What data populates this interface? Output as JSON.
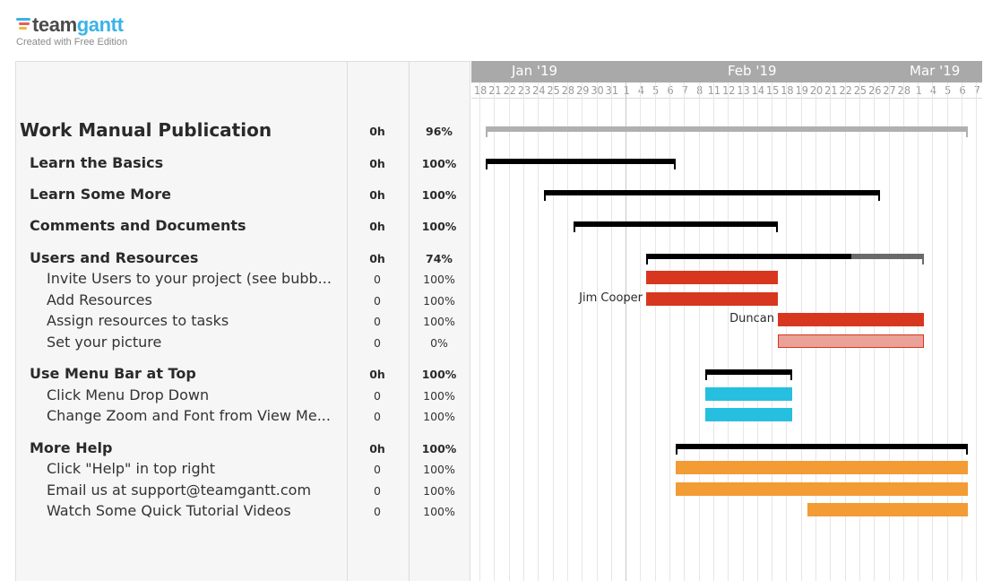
{
  "brand": {
    "word_a": "team",
    "word_b": "gantt",
    "subtitle": "Created with Free Edition",
    "logo_colors": [
      "#3ab3e6",
      "#e85d5d",
      "#f0b840",
      "#9b6fc9"
    ]
  },
  "months": [
    {
      "label": "Jan '19"
    },
    {
      "label": "Feb '19"
    },
    {
      "label": "Mar '19"
    }
  ],
  "days": [
    "18",
    "21",
    "22",
    "23",
    "24",
    "25",
    "28",
    "29",
    "30",
    "31",
    "1",
    "4",
    "5",
    "6",
    "7",
    "8",
    "11",
    "12",
    "13",
    "14",
    "15",
    "18",
    "19",
    "20",
    "21",
    "22",
    "25",
    "26",
    "27",
    "28",
    "1",
    "4",
    "5",
    "6",
    "7"
  ],
  "rows": [
    {
      "name": "Work Manual Publication",
      "hours": "0h",
      "percent": "96%",
      "level": 0
    },
    {
      "name": "Learn the Basics",
      "hours": "0h",
      "percent": "100%",
      "level": 1
    },
    {
      "name": "Learn Some More",
      "hours": "0h",
      "percent": "100%",
      "level": 1
    },
    {
      "name": "Comments and Documents",
      "hours": "0h",
      "percent": "100%",
      "level": 1
    },
    {
      "name": "Users and Resources",
      "hours": "0h",
      "percent": "74%",
      "level": 1
    },
    {
      "name": "Invite Users to your project (see bubb...",
      "hours": "0",
      "percent": "100%",
      "level": 2
    },
    {
      "name": "Add Resources",
      "hours": "0",
      "percent": "100%",
      "level": 2,
      "assignee": "Jim Cooper"
    },
    {
      "name": "Assign resources to tasks",
      "hours": "0",
      "percent": "100%",
      "level": 2,
      "assignee": "Duncan"
    },
    {
      "name": "Set your picture",
      "hours": "0",
      "percent": "0%",
      "level": 2
    },
    {
      "name": "Use Menu Bar at Top",
      "hours": "0h",
      "percent": "100%",
      "level": 1
    },
    {
      "name": "Click Menu Drop Down",
      "hours": "0",
      "percent": "100%",
      "level": 2
    },
    {
      "name": "Change Zoom and Font from View Me...",
      "hours": "0",
      "percent": "100%",
      "level": 2
    },
    {
      "name": "More Help",
      "hours": "0h",
      "percent": "100%",
      "level": 1
    },
    {
      "name": "Click \"Help\" in top right",
      "hours": "0",
      "percent": "100%",
      "level": 2
    },
    {
      "name": "Email us at support@teamgantt.com",
      "hours": "0",
      "percent": "100%",
      "level": 2
    },
    {
      "name": "Watch Some Quick Tutorial Videos",
      "hours": "0",
      "percent": "100%",
      "level": 2
    }
  ],
  "bars": [
    {
      "start": 1,
      "end": 34,
      "color": "#b0b0b0",
      "type": "summary"
    },
    {
      "start": 1,
      "end": 14,
      "color": "#000000",
      "type": "summary"
    },
    {
      "start": 5,
      "end": 28,
      "color": "#000000",
      "type": "summary"
    },
    {
      "start": 7,
      "end": 21,
      "color": "#000000",
      "type": "summary"
    },
    {
      "start": 12,
      "end": 31,
      "color": "#000000",
      "type": "summary",
      "done": 0.74,
      "rest_color": "#6a6a6a"
    },
    {
      "start": 12,
      "end": 21,
      "color": "#d7371f",
      "type": "task"
    },
    {
      "start": 12,
      "end": 21,
      "color": "#d7371f",
      "type": "task"
    },
    {
      "start": 21,
      "end": 31,
      "color": "#d7371f",
      "type": "task"
    },
    {
      "start": 21,
      "end": 31,
      "color": "#eaa197",
      "type": "task",
      "border": "#d7371f"
    },
    {
      "start": 16,
      "end": 22,
      "color": "#000000",
      "type": "summary"
    },
    {
      "start": 16,
      "end": 22,
      "color": "#27bfe0",
      "type": "task"
    },
    {
      "start": 16,
      "end": 22,
      "color": "#27bfe0",
      "type": "task"
    },
    {
      "start": 14,
      "end": 34,
      "color": "#000000",
      "type": "summary"
    },
    {
      "start": 14,
      "end": 34,
      "color": "#f39b35",
      "type": "task"
    },
    {
      "start": 14,
      "end": 34,
      "color": "#f39b35",
      "type": "task"
    },
    {
      "start": 23,
      "end": 34,
      "color": "#f39b35",
      "type": "task"
    }
  ]
}
